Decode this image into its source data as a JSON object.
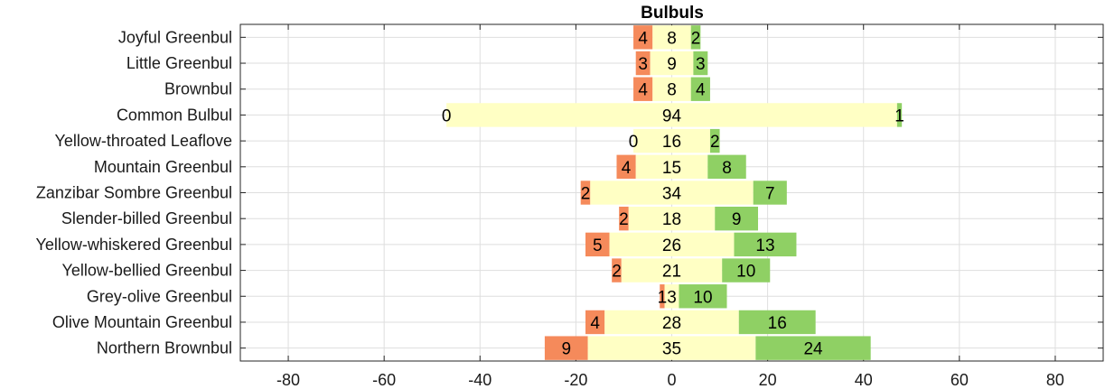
{
  "chart_data": {
    "type": "bar",
    "orientation": "horizontal",
    "stacking": "diverging",
    "title": "Bulbuls",
    "xlabel": "",
    "ylabel": "",
    "xlim": [
      -90,
      90
    ],
    "xticks": [
      -80,
      -60,
      -40,
      -20,
      0,
      20,
      40,
      60,
      80
    ],
    "grid": true,
    "colors": {
      "left": "#f58a5b",
      "middle": "#ffffc4",
      "right": "#8fd064"
    },
    "categories": [
      "Joyful Greenbul",
      "Little Greenbul",
      "Brownbul",
      "Common Bulbul",
      "Yellow-throated Leaflove",
      "Mountain Greenbul",
      "Zanzibar Sombre Greenbul",
      "Slender-billed Greenbul",
      "Yellow-whiskered Greenbul",
      "Yellow-bellied Greenbul",
      "Grey-olive Greenbul",
      "Olive Mountain Greenbul",
      "Northern Brownbul"
    ],
    "series": [
      {
        "values": [
          4,
          3,
          4,
          0,
          0,
          4,
          2,
          2,
          5,
          2,
          1,
          4,
          9
        ]
      },
      {
        "values": [
          8,
          9,
          8,
          94,
          16,
          15,
          34,
          18,
          26,
          21,
          3,
          28,
          35
        ]
      },
      {
        "values": [
          2,
          3,
          4,
          1,
          2,
          8,
          7,
          9,
          13,
          10,
          10,
          16,
          24
        ]
      }
    ]
  }
}
